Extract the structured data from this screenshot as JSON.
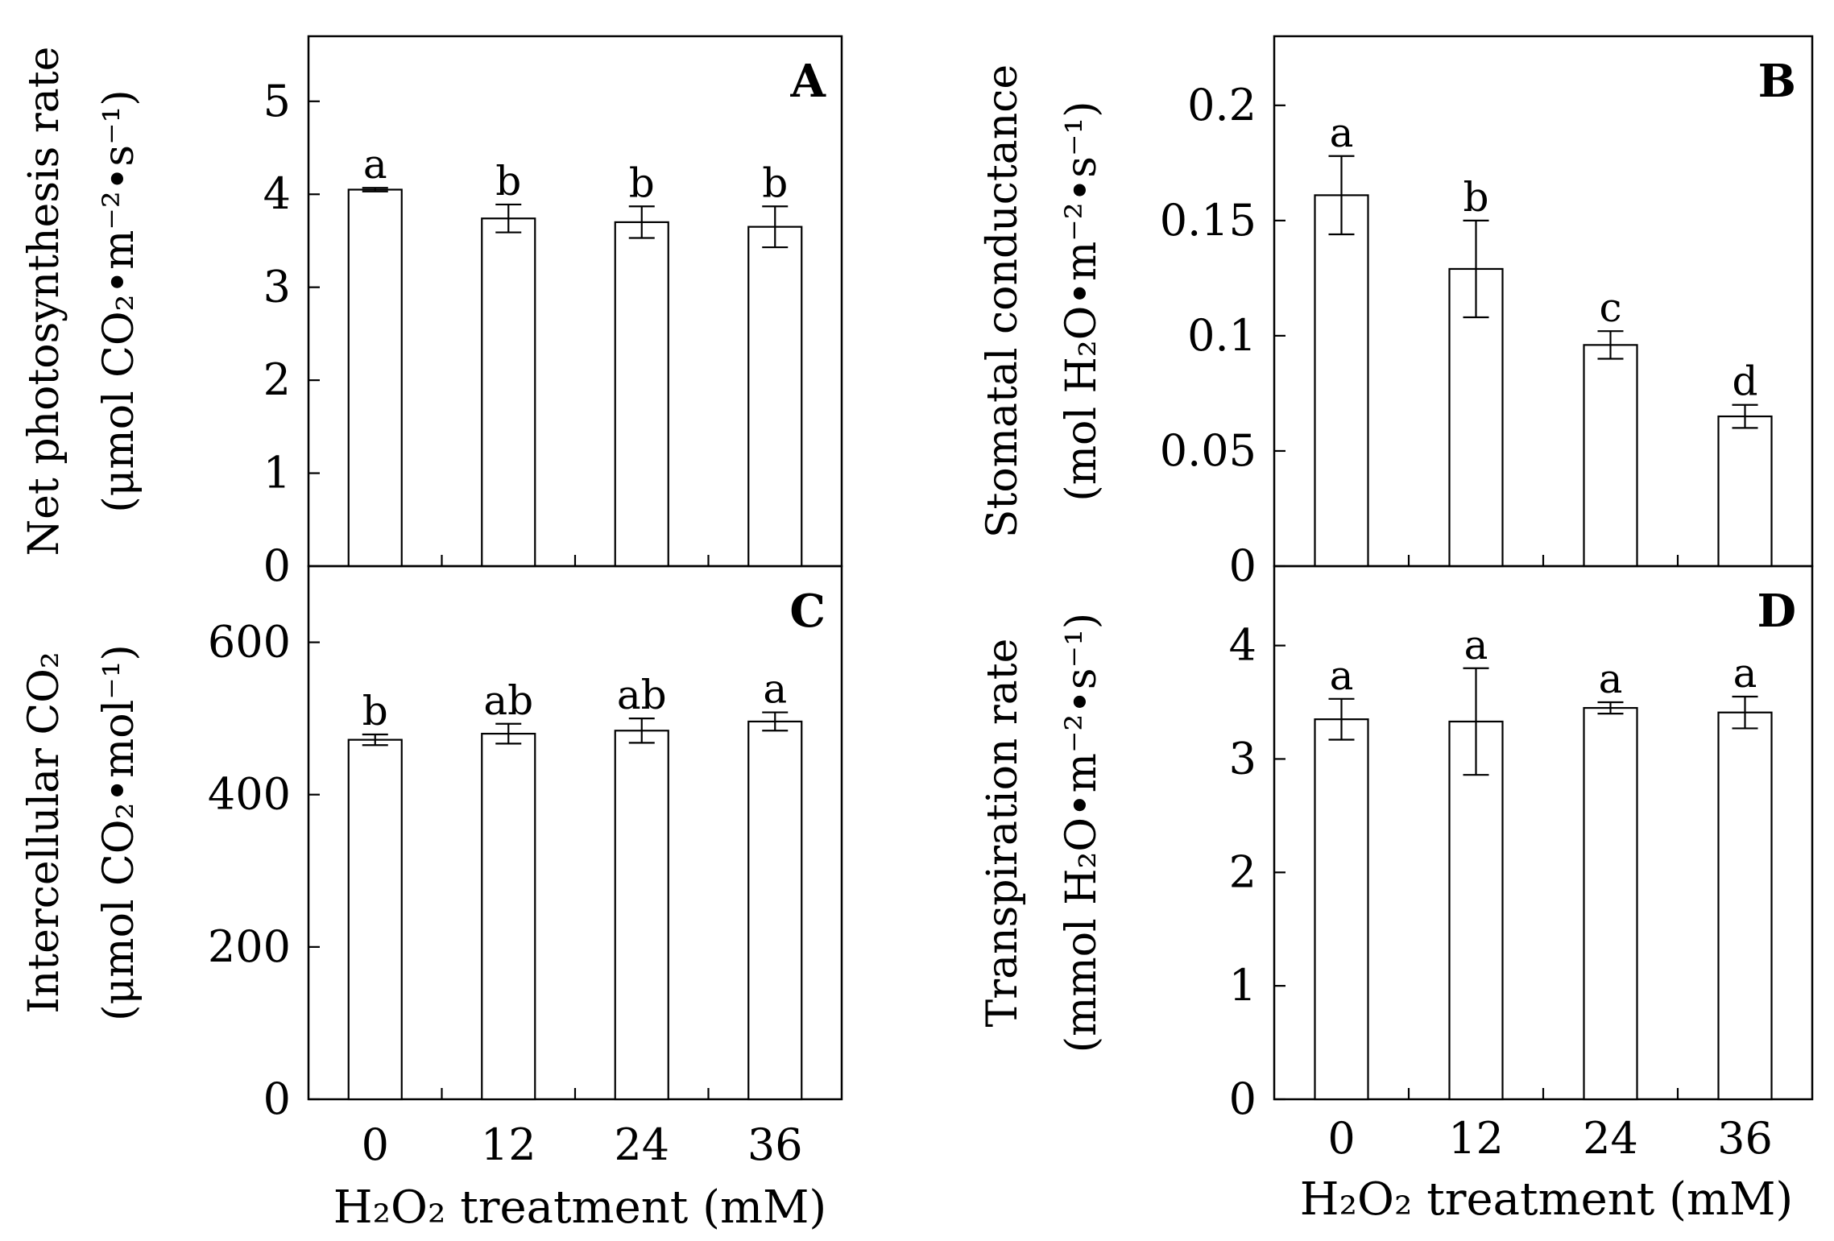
{
  "chart_data": [
    {
      "type": "bar",
      "panel": "A",
      "ylabel_line1": "Net photosynthesis rate",
      "ylabel_line2": "(μmol CO₂•m⁻²•s⁻¹)",
      "categories": [
        "0",
        "12",
        "24",
        "36"
      ],
      "values": [
        4.05,
        3.74,
        3.7,
        3.65
      ],
      "errors": [
        0.02,
        0.15,
        0.17,
        0.22
      ],
      "letters": [
        "a",
        "b",
        "b",
        "b"
      ],
      "ylim": [
        0,
        5.7
      ],
      "yticks": [
        0,
        1,
        2,
        3,
        4,
        5
      ],
      "ytick_labels": [
        "0",
        "1",
        "2",
        "3",
        "4",
        "5"
      ]
    },
    {
      "type": "bar",
      "panel": "B",
      "ylabel_line1": "Stomatal conductance",
      "ylabel_line2": "(mol H₂O•m⁻²•s⁻¹)",
      "categories": [
        "0",
        "12",
        "24",
        "36"
      ],
      "values": [
        0.161,
        0.129,
        0.096,
        0.065
      ],
      "errors": [
        0.017,
        0.021,
        0.006,
        0.005
      ],
      "letters": [
        "a",
        "b",
        "c",
        "d"
      ],
      "ylim": [
        0,
        0.23
      ],
      "yticks": [
        0,
        0.05,
        0.1,
        0.15,
        0.2
      ],
      "ytick_labels": [
        "0",
        "0.05",
        "0.1",
        "0.15",
        "0.2"
      ]
    },
    {
      "type": "bar",
      "panel": "C",
      "ylabel_line1": "Intercellular CO₂",
      "ylabel_line2": "(μmol CO₂•mol⁻¹)",
      "categories": [
        "0",
        "12",
        "24",
        "36"
      ],
      "values": [
        472,
        480,
        484,
        496
      ],
      "errors": [
        7,
        13,
        16,
        12
      ],
      "letters": [
        "b",
        "ab",
        "ab",
        "a"
      ],
      "ylim": [
        0,
        700
      ],
      "yticks": [
        0,
        200,
        400,
        600
      ],
      "ytick_labels": [
        "0",
        "200",
        "400",
        "600"
      ]
    },
    {
      "type": "bar",
      "panel": "D",
      "ylabel_line1": "Transpiration rate",
      "ylabel_line2": "(mmol H₂O•m⁻²•s⁻¹)",
      "categories": [
        "0",
        "12",
        "24",
        "36"
      ],
      "values": [
        3.35,
        3.33,
        3.45,
        3.41
      ],
      "errors": [
        0.18,
        0.47,
        0.05,
        0.14
      ],
      "letters": [
        "a",
        "a",
        "a",
        "a"
      ],
      "ylim": [
        0,
        4.7
      ],
      "yticks": [
        0,
        1,
        2,
        3,
        4
      ],
      "ytick_labels": [
        "0",
        "1",
        "2",
        "3",
        "4"
      ]
    }
  ],
  "xlabel_left": "H₂O₂ treatment (mM)",
  "xlabel_right": "H₂O₂ treatment (mM)"
}
